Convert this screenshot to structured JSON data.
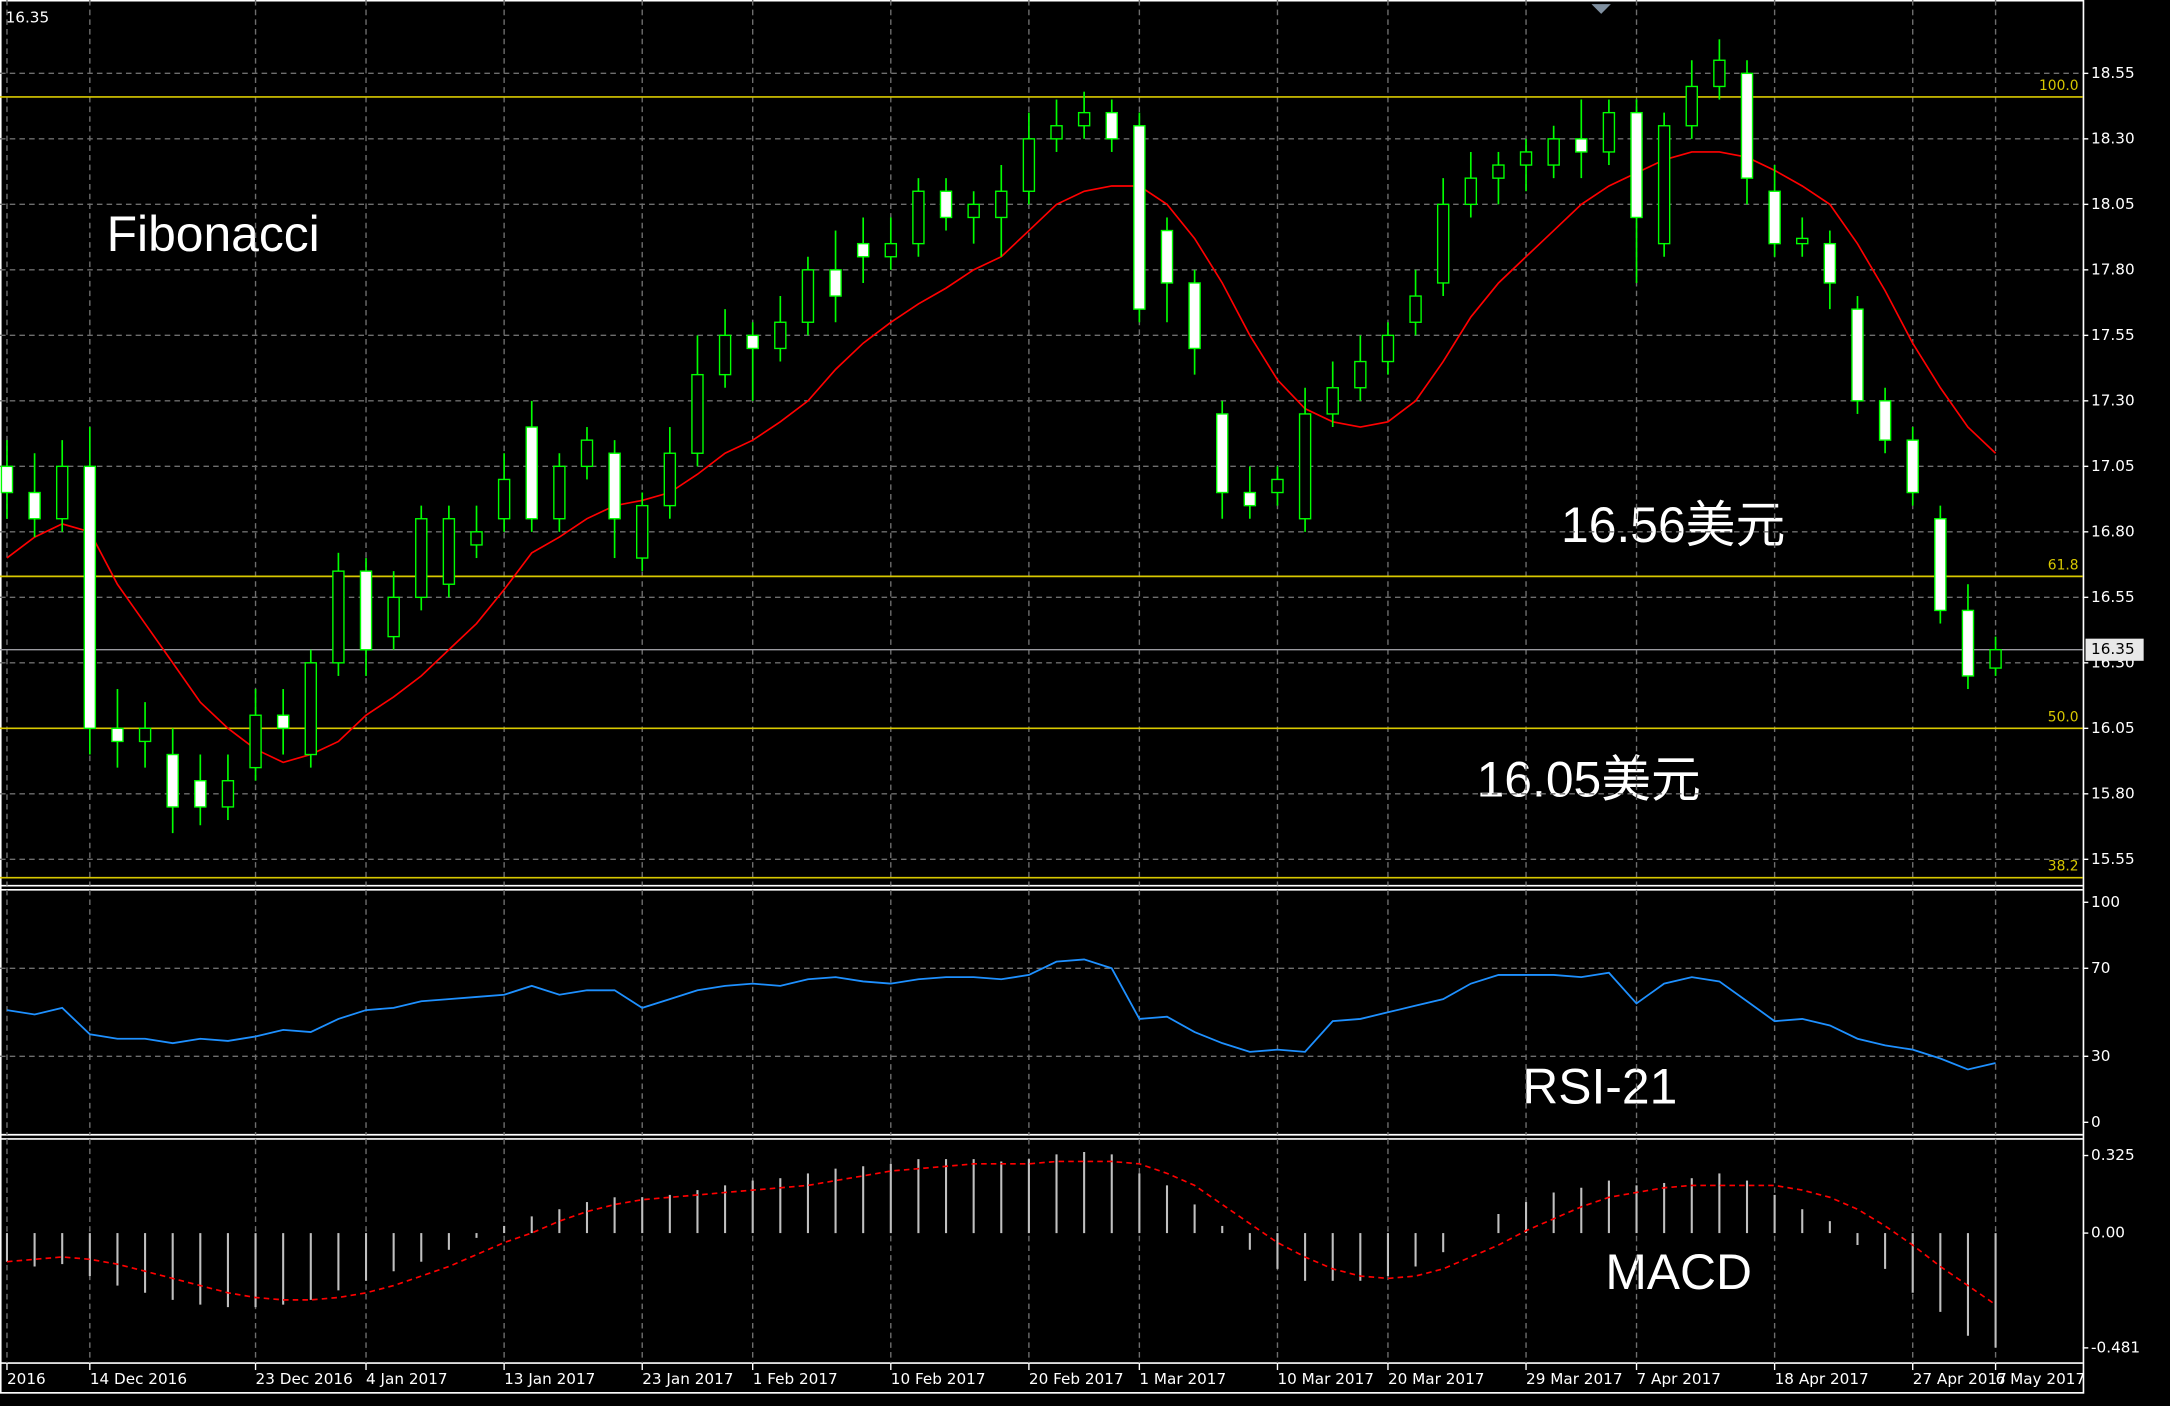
{
  "chart_data": [
    {
      "type": "candlestick",
      "title": "Fibonacci",
      "annotations": [
        "16.56美元",
        "16.05美元"
      ],
      "current_price": 16.35,
      "categories": [
        "2016",
        null,
        null,
        "14 Dec 2016",
        null,
        null,
        null,
        null,
        null,
        "23 Dec 2016",
        null,
        null,
        null,
        "4 Jan 2017",
        null,
        null,
        null,
        null,
        "13 Jan 2017",
        null,
        null,
        null,
        null,
        "23 Jan 2017",
        null,
        null,
        null,
        "1 Feb 2017",
        null,
        null,
        null,
        null,
        "10 Feb 2017",
        null,
        null,
        null,
        null,
        "20 Feb 2017",
        null,
        null,
        null,
        "1 Mar 2017",
        null,
        null,
        null,
        null,
        "10 Mar 2017",
        null,
        null,
        null,
        "20 Mar 2017",
        null,
        null,
        null,
        null,
        "29 Mar 2017",
        null,
        null,
        null,
        "7 Apr 2017",
        null,
        null,
        null,
        null,
        "18 Apr 2017",
        null,
        null,
        null,
        null,
        "27 Apr 2017",
        null,
        null,
        "6 May 2017"
      ],
      "open": [
        17.05,
        16.95,
        16.85,
        17.05,
        16.05,
        16.0,
        15.95,
        15.85,
        15.75,
        15.9,
        16.1,
        15.95,
        16.3,
        16.65,
        16.4,
        16.55,
        16.6,
        16.75,
        16.85,
        17.2,
        16.85,
        17.05,
        17.1,
        16.7,
        16.9,
        17.1,
        17.4,
        17.55,
        17.5,
        17.6,
        17.8,
        17.9,
        17.85,
        17.9,
        18.1,
        18.0,
        18.0,
        18.1,
        18.3,
        18.35,
        18.4,
        18.35,
        17.95,
        17.75,
        17.25,
        16.95,
        16.95,
        16.85,
        17.25,
        17.35,
        17.45,
        17.6,
        17.75,
        18.05,
        18.15,
        18.2,
        18.2,
        18.3,
        18.25,
        18.4,
        17.9,
        18.35,
        18.5,
        18.55,
        18.1,
        17.9,
        17.9,
        17.65,
        17.3,
        17.15,
        16.85,
        16.5,
        16.28
      ],
      "high": [
        17.15,
        17.1,
        17.15,
        17.2,
        16.2,
        16.15,
        16.05,
        15.95,
        15.95,
        16.2,
        16.2,
        16.35,
        16.72,
        16.7,
        16.65,
        16.9,
        16.9,
        16.9,
        17.1,
        17.3,
        17.1,
        17.2,
        17.15,
        16.95,
        17.2,
        17.55,
        17.65,
        17.6,
        17.7,
        17.85,
        17.95,
        18.0,
        18.0,
        18.15,
        18.15,
        18.1,
        18.2,
        18.4,
        18.45,
        18.48,
        18.45,
        18.4,
        18.0,
        17.8,
        17.3,
        17.05,
        17.05,
        17.35,
        17.45,
        17.55,
        17.6,
        17.8,
        18.15,
        18.25,
        18.25,
        18.3,
        18.35,
        18.45,
        18.45,
        18.45,
        18.4,
        18.6,
        18.68,
        18.6,
        18.2,
        18.0,
        17.95,
        17.7,
        17.35,
        17.2,
        16.9,
        16.6,
        16.4
      ],
      "low": [
        16.85,
        16.78,
        16.8,
        15.95,
        15.9,
        15.9,
        15.65,
        15.68,
        15.7,
        15.85,
        15.95,
        15.9,
        16.25,
        16.25,
        16.35,
        16.5,
        16.55,
        16.7,
        16.8,
        16.8,
        16.8,
        17.0,
        16.7,
        16.65,
        16.85,
        17.05,
        17.35,
        17.3,
        17.45,
        17.55,
        17.6,
        17.75,
        17.8,
        17.85,
        17.95,
        17.9,
        17.85,
        18.05,
        18.25,
        18.3,
        18.25,
        17.6,
        17.6,
        17.4,
        16.85,
        16.85,
        16.9,
        16.8,
        17.2,
        17.3,
        17.4,
        17.55,
        17.7,
        18.0,
        18.05,
        18.1,
        18.15,
        18.15,
        18.2,
        17.75,
        17.85,
        18.3,
        18.45,
        18.05,
        17.85,
        17.85,
        17.65,
        17.25,
        17.1,
        16.9,
        16.45,
        16.2,
        16.25
      ],
      "close": [
        16.95,
        16.85,
        17.05,
        16.05,
        16.0,
        16.05,
        15.75,
        15.75,
        15.85,
        16.1,
        16.05,
        16.3,
        16.65,
        16.35,
        16.55,
        16.85,
        16.85,
        16.8,
        17.0,
        16.85,
        17.05,
        17.15,
        16.85,
        16.9,
        17.1,
        17.4,
        17.55,
        17.5,
        17.6,
        17.8,
        17.7,
        17.85,
        17.9,
        18.1,
        18.0,
        18.05,
        18.1,
        18.3,
        18.35,
        18.4,
        18.3,
        17.65,
        17.75,
        17.5,
        16.95,
        16.9,
        17.0,
        17.25,
        17.35,
        17.45,
        17.55,
        17.7,
        18.05,
        18.15,
        18.2,
        18.25,
        18.3,
        18.25,
        18.4,
        18.0,
        18.35,
        18.5,
        18.6,
        18.15,
        17.9,
        17.92,
        17.75,
        17.3,
        17.15,
        16.95,
        16.5,
        16.25,
        16.35
      ],
      "bull_color": "#000000",
      "bear_color": "#ffffff",
      "wick_color": "#00ff00",
      "ma": {
        "color": "#ff0000",
        "values": [
          16.7,
          16.78,
          16.83,
          16.8,
          16.6,
          16.45,
          16.3,
          16.15,
          16.05,
          15.97,
          15.92,
          15.95,
          16.0,
          16.1,
          16.17,
          16.25,
          16.35,
          16.45,
          16.58,
          16.72,
          16.78,
          16.85,
          16.9,
          16.92,
          16.95,
          17.02,
          17.1,
          17.15,
          17.22,
          17.3,
          17.42,
          17.52,
          17.6,
          17.67,
          17.73,
          17.8,
          17.85,
          17.95,
          18.05,
          18.1,
          18.12,
          18.12,
          18.05,
          17.92,
          17.75,
          17.55,
          17.38,
          17.27,
          17.22,
          17.2,
          17.22,
          17.3,
          17.45,
          17.62,
          17.75,
          17.85,
          17.95,
          18.05,
          18.12,
          18.17,
          18.22,
          18.25,
          18.25,
          18.23,
          18.18,
          18.12,
          18.05,
          17.9,
          17.72,
          17.52,
          17.35,
          17.2,
          17.1
        ]
      },
      "fib_levels": [
        {
          "value": 18.46,
          "label": "100.0"
        },
        {
          "value": 16.63,
          "label": "61.8"
        },
        {
          "value": 16.05,
          "label": "50.0"
        },
        {
          "value": 15.48,
          "label": "38.2"
        }
      ],
      "fib_color": "#d8c800",
      "ylim": [
        15.46,
        18.83
      ],
      "yticks": [
        18.55,
        {
          "value": 18.3,
          "label": "18.30"
        },
        18.05,
        {
          "value": 17.8,
          "label": "17.80"
        },
        17.55,
        {
          "value": 17.3,
          "label": "17.30"
        },
        17.05,
        {
          "value": 16.8,
          "label": "16.80"
        },
        16.55,
        {
          "value": 16.3,
          "label": "16.30"
        },
        16.05,
        {
          "value": 15.8,
          "label": "15.80"
        },
        15.55
      ],
      "grid": true
    },
    {
      "type": "line",
      "title": "RSI-21",
      "color": "#1e90ff",
      "values": [
        51,
        49,
        52,
        40,
        38,
        38,
        36,
        38,
        37,
        39,
        42,
        41,
        47,
        51,
        52,
        55,
        56,
        57,
        58,
        62,
        58,
        60,
        60,
        52,
        56,
        60,
        62,
        63,
        62,
        65,
        66,
        64,
        63,
        65,
        66,
        66,
        65,
        67,
        73,
        74,
        70,
        47,
        48,
        41,
        36,
        32,
        33,
        32,
        46,
        47,
        50,
        53,
        56,
        63,
        67,
        67,
        67,
        66,
        68,
        54,
        63,
        66,
        64,
        55,
        46,
        47,
        44,
        38,
        35,
        33,
        29,
        24,
        27
      ],
      "ylim": [
        0,
        100
      ],
      "yticks": [
        100,
        70,
        30,
        0
      ],
      "grid": true
    },
    {
      "type": "macd",
      "title": "MACD",
      "histogram_color": "#c0c0c0",
      "signal_color": "#ff0000",
      "histogram": [
        -0.12,
        -0.14,
        -0.13,
        -0.18,
        -0.22,
        -0.25,
        -0.28,
        -0.3,
        -0.31,
        -0.31,
        -0.3,
        -0.28,
        -0.24,
        -0.2,
        -0.16,
        -0.12,
        -0.07,
        -0.02,
        0.03,
        0.07,
        0.1,
        0.13,
        0.15,
        0.15,
        0.16,
        0.18,
        0.2,
        0.22,
        0.23,
        0.25,
        0.27,
        0.28,
        0.29,
        0.31,
        0.31,
        0.31,
        0.3,
        0.31,
        0.33,
        0.34,
        0.33,
        0.25,
        0.2,
        0.12,
        0.03,
        -0.07,
        -0.15,
        -0.2,
        -0.2,
        -0.2,
        -0.18,
        -0.14,
        -0.08,
        0,
        0.08,
        0.13,
        0.17,
        0.19,
        0.22,
        0.2,
        0.21,
        0.23,
        0.25,
        0.22,
        0.16,
        0.1,
        0.05,
        -0.05,
        -0.15,
        -0.25,
        -0.33,
        -0.43,
        -0.48
      ],
      "signal": [
        -0.12,
        -0.11,
        -0.1,
        -0.11,
        -0.13,
        -0.16,
        -0.19,
        -0.22,
        -0.25,
        -0.27,
        -0.28,
        -0.28,
        -0.27,
        -0.25,
        -0.22,
        -0.18,
        -0.14,
        -0.09,
        -0.04,
        0,
        0.05,
        0.09,
        0.12,
        0.14,
        0.15,
        0.16,
        0.17,
        0.18,
        0.19,
        0.2,
        0.22,
        0.24,
        0.26,
        0.27,
        0.28,
        0.29,
        0.29,
        0.29,
        0.3,
        0.3,
        0.3,
        0.29,
        0.25,
        0.2,
        0.12,
        0.04,
        -0.04,
        -0.1,
        -0.15,
        -0.18,
        -0.19,
        -0.18,
        -0.15,
        -0.1,
        -0.05,
        0.01,
        0.06,
        0.11,
        0.15,
        0.17,
        0.19,
        0.2,
        0.2,
        0.2,
        0.2,
        0.18,
        0.15,
        0.1,
        0.03,
        -0.05,
        -0.14,
        -0.22,
        -0.3
      ],
      "ylim": [
        -0.481,
        0.325
      ],
      "yticks": [
        0.325,
        {
          "value": 0,
          "label": "0.00"
        },
        -0.481
      ]
    }
  ]
}
